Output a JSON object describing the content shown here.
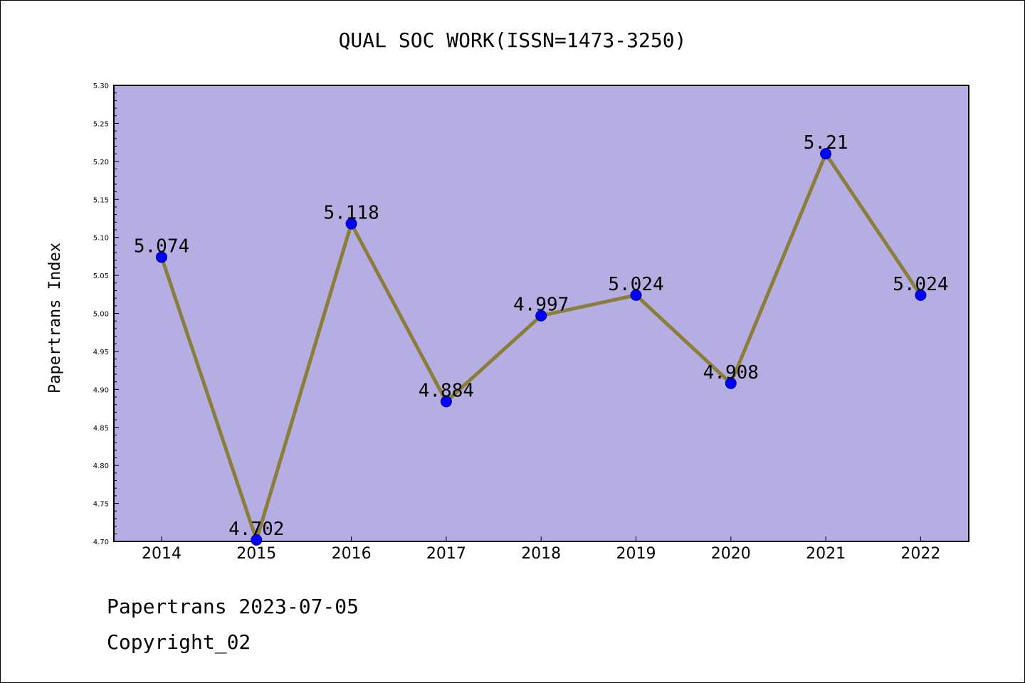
{
  "chart_data": {
    "type": "line",
    "title": "QUAL SOC WORK(ISSN=1473-3250)",
    "ylabel": "Papertrans Index",
    "xlabel": "",
    "categories": [
      "2014",
      "2015",
      "2016",
      "2017",
      "2018",
      "2019",
      "2020",
      "2021",
      "2022"
    ],
    "values": [
      5.074,
      4.702,
      5.118,
      4.884,
      4.997,
      5.024,
      4.908,
      5.21,
      5.024
    ],
    "data_labels": [
      "5.074",
      "4.702",
      "5.118",
      "4.884",
      "4.997",
      "5.024",
      "4.908",
      "5.21",
      "5.024"
    ],
    "ylim": [
      4.7,
      5.3
    ],
    "yticks": [
      "4.70",
      "4.75",
      "4.80",
      "4.85",
      "4.90",
      "4.95",
      "5.00",
      "5.05",
      "5.10",
      "5.15",
      "5.20",
      "5.25",
      "5.30"
    ],
    "grid": false,
    "legend": "none",
    "colors": {
      "plot_background": "#b5aee2",
      "line": "#8b7d3a",
      "marker": "#0000ff"
    }
  },
  "footer": {
    "line1": "Papertrans 2023-07-05",
    "line2": "Copyright_02"
  }
}
